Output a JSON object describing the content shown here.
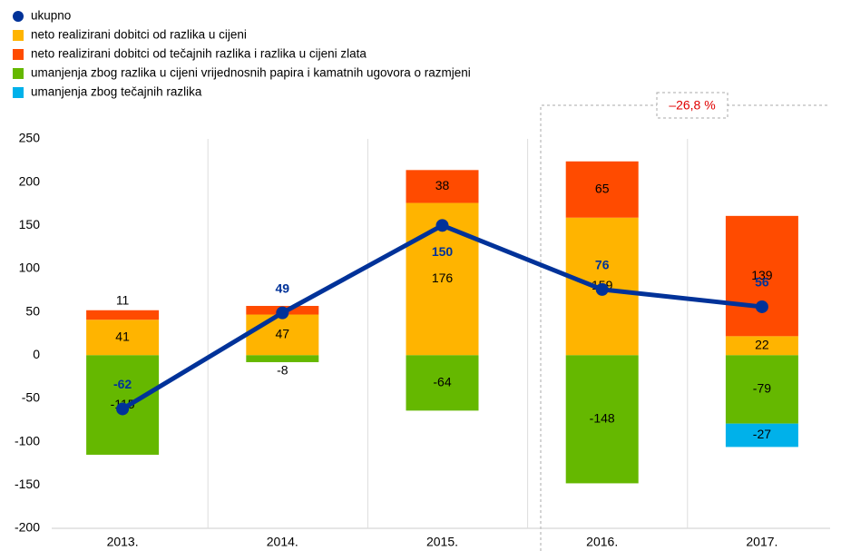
{
  "chart_data": {
    "type": "bar",
    "categories": [
      "2013.",
      "2014.",
      "2015.",
      "2016.",
      "2017."
    ],
    "series": [
      {
        "name": "ukupno",
        "type": "line",
        "color": "#003299",
        "values": [
          -62,
          49,
          150,
          76,
          56
        ]
      },
      {
        "name": "neto realizirani dobitci od razlika u cijeni",
        "color": "#ffb400",
        "values": [
          41,
          47,
          176,
          159,
          22
        ]
      },
      {
        "name": "neto realizirani dobitci od tečajnih razlika i razlika u cijeni zlata",
        "color": "#ff4b00",
        "values": [
          11,
          10,
          38,
          65,
          139
        ],
        "value_labels": [
          "11",
          null,
          "38",
          "65",
          "139"
        ]
      },
      {
        "name": "umanjenja zbog razlika u cijeni vrijednosnih papira i kamatnih ugovora o razmjeni",
        "color": "#65b800",
        "values": [
          -115,
          -8,
          -64,
          -148,
          -79
        ]
      },
      {
        "name": "umanjenja zbog tečajnih razlika",
        "color": "#00b1ea",
        "values": [
          null,
          null,
          null,
          null,
          -27
        ]
      }
    ],
    "annotation": "–26,8 %",
    "ylim": [
      -200,
      250
    ],
    "yticks": [
      -200,
      -150,
      -100,
      -50,
      0,
      50,
      100,
      150,
      200,
      250
    ],
    "grid": "x",
    "legend": "top-left"
  }
}
